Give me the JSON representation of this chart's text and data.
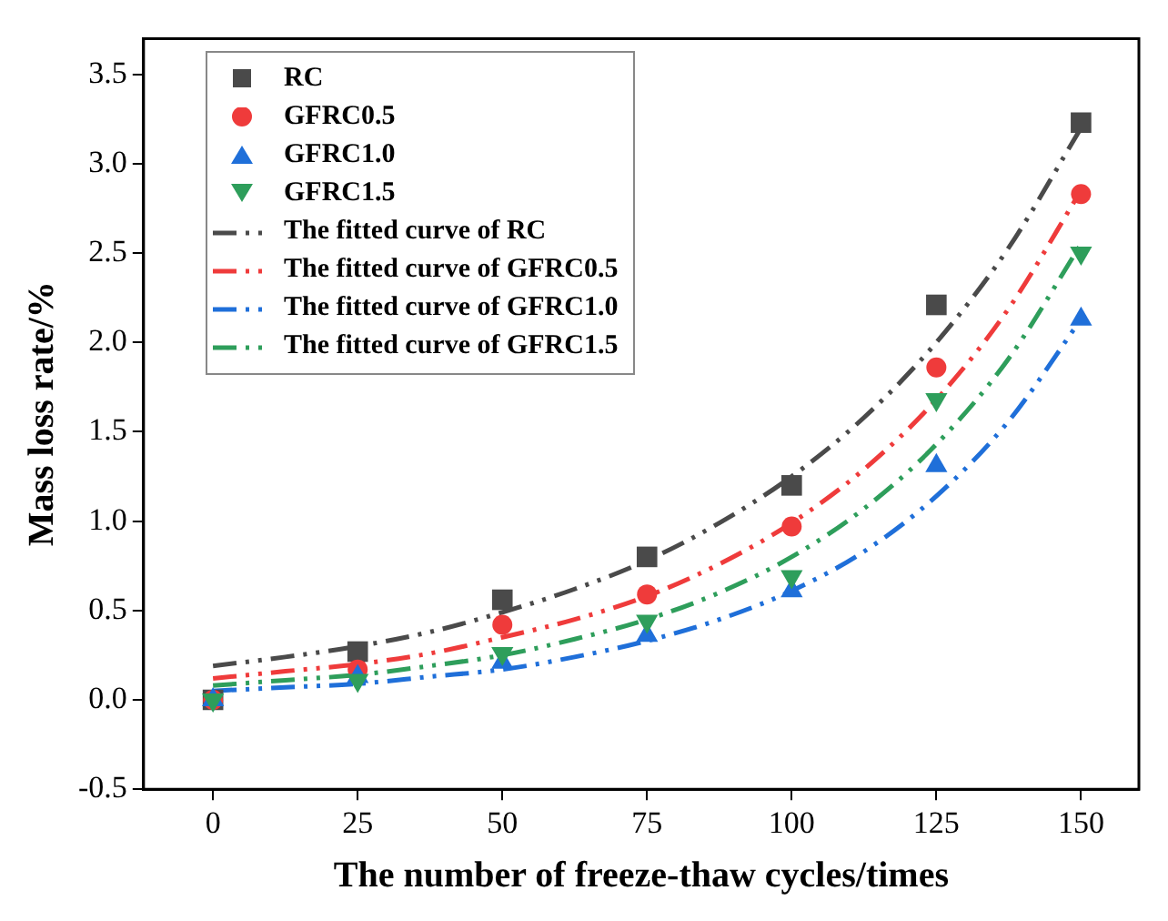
{
  "chart_data": {
    "type": "scatter",
    "xlabel": "The number of freeze-thaw cycles/times",
    "ylabel": "Mass loss rate/%",
    "xlim": [
      -12,
      160
    ],
    "xticks": [
      0,
      25,
      50,
      75,
      100,
      125,
      150
    ],
    "ylim": [
      -0.5,
      3.7
    ],
    "yticks": [
      {
        "value": -0.5,
        "label": "-0.5"
      },
      {
        "value": 0,
        "label": "0.0"
      },
      {
        "value": 0.5,
        "label": "0.5"
      },
      {
        "value": 1,
        "label": "1.0"
      },
      {
        "value": 1.5,
        "label": "1.5"
      },
      {
        "value": 2,
        "label": "2.0"
      },
      {
        "value": 2.5,
        "label": "2.5"
      },
      {
        "value": 3,
        "label": "3.0"
      },
      {
        "value": 3.5,
        "label": "3.5"
      }
    ],
    "grid": false,
    "legend": "top left",
    "series": [
      {
        "name": "RC",
        "type": "scatter",
        "marker": "square",
        "color": "#4a4a4a",
        "x": [
          0,
          25,
          50,
          75,
          100,
          125,
          150
        ],
        "values": [
          0,
          0.27,
          0.56,
          0.8,
          1.2,
          2.21,
          3.23
        ]
      },
      {
        "name": "GFRC0.5",
        "type": "scatter",
        "marker": "circle",
        "color": "#ef3b3b",
        "x": [
          0,
          25,
          50,
          75,
          100,
          125,
          150
        ],
        "values": [
          0,
          0.17,
          0.42,
          0.59,
          0.97,
          1.86,
          2.83
        ]
      },
      {
        "name": "GFRC1.0",
        "type": "scatter",
        "marker": "triangle",
        "color": "#1f6fd9",
        "x": [
          0,
          25,
          50,
          75,
          100,
          125,
          150
        ],
        "values": [
          0,
          0.13,
          0.21,
          0.36,
          0.61,
          1.31,
          2.13
        ]
      },
      {
        "name": "GFRC1.5",
        "type": "scatter",
        "marker": "triangle-down",
        "color": "#2e9e5b",
        "x": [
          0,
          25,
          50,
          75,
          100,
          125,
          150
        ],
        "values": [
          0,
          0.11,
          0.26,
          0.44,
          0.69,
          1.68,
          2.5
        ]
      },
      {
        "name": "The fitted curve of RC",
        "type": "line",
        "line_style": "dashed",
        "color": "#4a4a4a",
        "x": [
          0,
          12.5,
          25,
          37.5,
          50,
          62.5,
          75,
          87.5,
          100,
          112.5,
          125,
          137.5,
          150
        ],
        "values": [
          0.19,
          0.24,
          0.3,
          0.38,
          0.49,
          0.62,
          0.78,
          0.99,
          1.25,
          1.58,
          2.0,
          2.53,
          3.2
        ]
      },
      {
        "name": "The fitted curve of GFRC0.5",
        "type": "line",
        "line_style": "dashed",
        "color": "#ef3b3b",
        "x": [
          0,
          12.5,
          25,
          37.5,
          50,
          62.5,
          75,
          87.5,
          100,
          112.5,
          125,
          137.5,
          150
        ],
        "values": [
          0.12,
          0.16,
          0.2,
          0.26,
          0.35,
          0.45,
          0.58,
          0.76,
          0.99,
          1.29,
          1.68,
          2.19,
          2.85
        ]
      },
      {
        "name": "The fitted curve of GFRC1.0",
        "type": "line",
        "line_style": "dashed",
        "color": "#1f6fd9",
        "x": [
          0,
          12.5,
          25,
          37.5,
          50,
          62.5,
          75,
          87.5,
          100,
          112.5,
          125,
          137.5,
          150
        ],
        "values": [
          0.05,
          0.07,
          0.09,
          0.13,
          0.17,
          0.24,
          0.33,
          0.45,
          0.61,
          0.83,
          1.14,
          1.56,
          2.13
        ]
      },
      {
        "name": "The fitted curve of GFRC1.5",
        "type": "line",
        "line_style": "dashed",
        "color": "#2e9e5b",
        "x": [
          0,
          12.5,
          25,
          37.5,
          50,
          62.5,
          75,
          87.5,
          100,
          112.5,
          125,
          137.5,
          150
        ],
        "values": [
          0.08,
          0.11,
          0.14,
          0.19,
          0.25,
          0.34,
          0.45,
          0.6,
          0.8,
          1.07,
          1.43,
          1.91,
          2.55
        ]
      }
    ]
  }
}
